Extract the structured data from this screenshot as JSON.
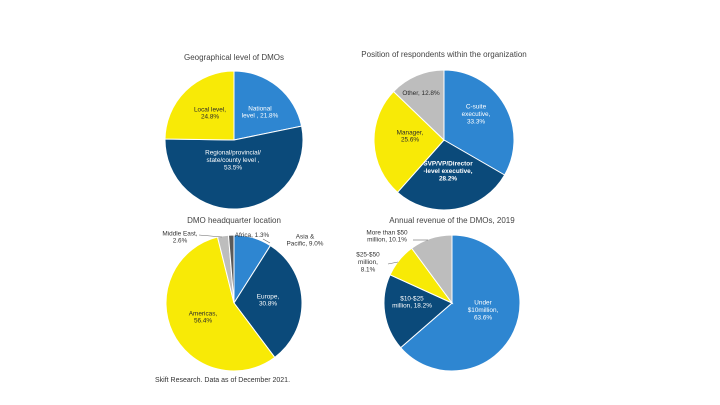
{
  "colors": {
    "light_blue": "#2e86d1",
    "dark_blue": "#0b4a7a",
    "yellow": "#f8ea06",
    "gray": "#bdbdbd",
    "dark_gray": "#5a5a5a"
  },
  "source": "Skift Research. Data as of December 2021.",
  "chart_data": [
    {
      "type": "pie",
      "title": "Geographical level of DMOs",
      "slices": [
        {
          "label": [
            "National",
            "level , 21.8%"
          ],
          "value": 21.8,
          "color": "light_blue"
        },
        {
          "label": [
            "Regional/provincial/",
            "state/county level ,",
            "53.5%"
          ],
          "value": 53.5,
          "color": "dark_blue"
        },
        {
          "label": [
            "Local level,",
            "24.8%"
          ],
          "value": 24.8,
          "color": "yellow"
        }
      ]
    },
    {
      "type": "pie",
      "title": "Position of respondents within the organization",
      "slices": [
        {
          "label": [
            "C-suite",
            "executive,",
            "33.3%"
          ],
          "value": 33.3,
          "color": "light_blue"
        },
        {
          "label": [
            "SVP/VP/Director",
            "-level executive,",
            "28.2%"
          ],
          "value": 28.2,
          "color": "dark_blue",
          "emphasis": true
        },
        {
          "label": [
            "Manager,",
            "25.6%"
          ],
          "value": 25.6,
          "color": "yellow"
        },
        {
          "label": [
            "Other, 12.8%"
          ],
          "value": 12.8,
          "color": "gray"
        }
      ]
    },
    {
      "type": "pie",
      "title": "DMO headquarter location",
      "slices": [
        {
          "label": [
            "Asia &",
            "Pacific, 9.0%"
          ],
          "value": 9.0,
          "color": "light_blue"
        },
        {
          "label": [
            "Europe,",
            "30.8%"
          ],
          "value": 30.8,
          "color": "dark_blue"
        },
        {
          "label": [
            "Americas,",
            "56.4%"
          ],
          "value": 56.4,
          "color": "yellow"
        },
        {
          "label": [
            "Middle East,",
            "2.6%"
          ],
          "value": 2.6,
          "color": "gray"
        },
        {
          "label": [
            "Africa, 1.3%"
          ],
          "value": 1.3,
          "color": "dark_gray"
        }
      ]
    },
    {
      "type": "pie",
      "title": "Annual revenue of the DMOs, 2019",
      "slices": [
        {
          "label": [
            "Under",
            "$10million,",
            "63.6%"
          ],
          "value": 63.6,
          "color": "light_blue"
        },
        {
          "label": [
            "$10-$25",
            "million, 18.2%"
          ],
          "value": 18.2,
          "color": "dark_blue"
        },
        {
          "label": [
            "$25-$50",
            "million,",
            "8.1%"
          ],
          "value": 8.1,
          "color": "yellow"
        },
        {
          "label": [
            "More than $50",
            "million, 10.1%"
          ],
          "value": 10.1,
          "color": "gray"
        }
      ]
    }
  ]
}
